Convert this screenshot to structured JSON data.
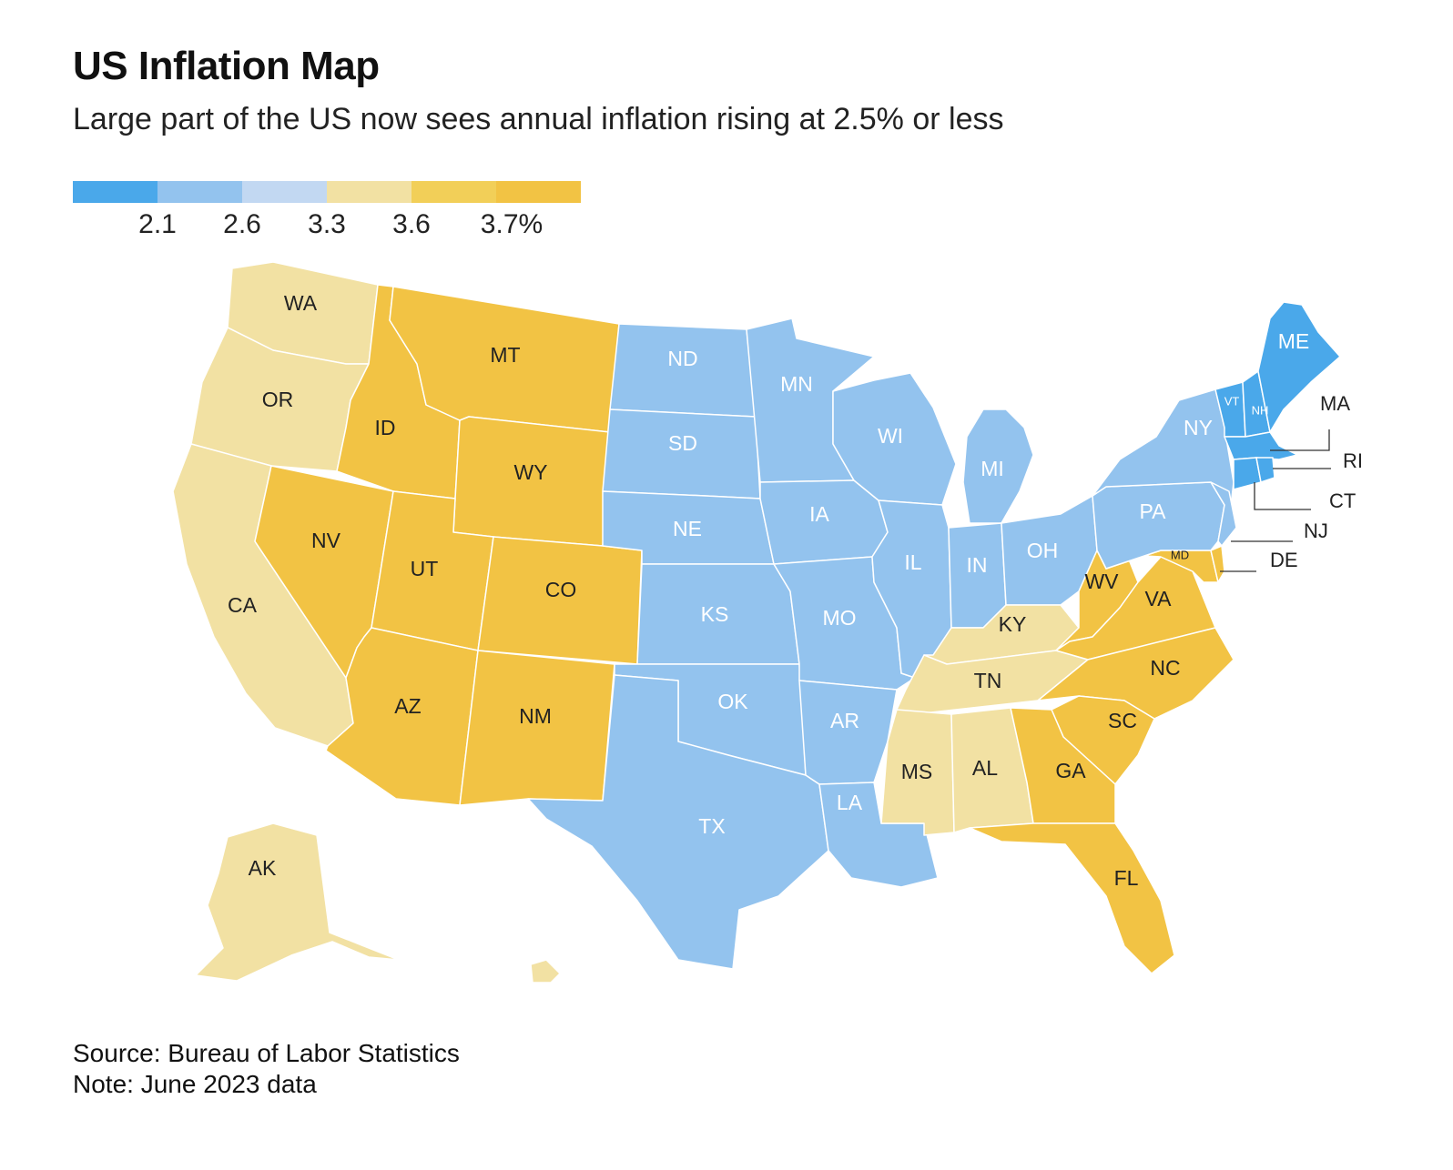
{
  "title": "US Inflation Map",
  "subtitle": "Large part of the US now sees annual inflation rising at 2.5% or less",
  "legend": {
    "colors": [
      "#4aa8ea",
      "#93c3ee",
      "#c2d8f2",
      "#f2e1a3",
      "#f2cf58",
      "#f2c344"
    ],
    "ticks": [
      "2.1",
      "2.6",
      "3.3",
      "3.6",
      "3.7%"
    ]
  },
  "colors": {
    "dark_blue": "#4aa8ea",
    "light_blue": "#93c3ee",
    "light_yellow": "#f2e1a3",
    "yellow": "#f2c344",
    "border": "#ffffff"
  },
  "regions": {
    "pacific": {
      "states": [
        "WA",
        "OR",
        "CA",
        "AK",
        "HI"
      ],
      "inflation_bucket": "3.3-3.6"
    },
    "mountain": {
      "states": [
        "MT",
        "ID",
        "WY",
        "NV",
        "UT",
        "CO",
        "AZ",
        "NM"
      ],
      "inflation_bucket": "3.6-3.7%"
    },
    "west_north_central": {
      "states": [
        "ND",
        "SD",
        "NE",
        "KS",
        "MN",
        "IA",
        "MO"
      ],
      "inflation_bucket": "2.1-2.6"
    },
    "west_south_central": {
      "states": [
        "TX",
        "OK",
        "AR",
        "LA"
      ],
      "inflation_bucket": "2.1-2.6"
    },
    "east_north_central": {
      "states": [
        "WI",
        "MI",
        "IL",
        "IN",
        "OH"
      ],
      "inflation_bucket": "2.1-2.6"
    },
    "east_south_central": {
      "states": [
        "KY",
        "TN",
        "MS",
        "AL"
      ],
      "inflation_bucket": "3.3-3.6"
    },
    "south_atlantic": {
      "states": [
        "WV",
        "VA",
        "MD",
        "DE",
        "NC",
        "SC",
        "GA",
        "FL"
      ],
      "inflation_bucket": "3.6-3.7%"
    },
    "middle_atlantic": {
      "states": [
        "NY",
        "PA",
        "NJ"
      ],
      "inflation_bucket": "2.1-2.6"
    },
    "new_england": {
      "states": [
        "ME",
        "NH",
        "VT",
        "MA",
        "RI",
        "CT"
      ],
      "inflation_bucket": "<2.1"
    }
  },
  "labels": {
    "WA": "WA",
    "OR": "OR",
    "CA": "CA",
    "AK": "AK",
    "MT": "MT",
    "ID": "ID",
    "WY": "WY",
    "NV": "NV",
    "UT": "UT",
    "CO": "CO",
    "AZ": "AZ",
    "NM": "NM",
    "ND": "ND",
    "SD": "SD",
    "NE": "NE",
    "KS": "KS",
    "MN": "MN",
    "IA": "IA",
    "MO": "MO",
    "TX": "TX",
    "OK": "OK",
    "AR": "AR",
    "LA": "LA",
    "WI": "WI",
    "MI": "MI",
    "IL": "IL",
    "IN": "IN",
    "OH": "OH",
    "KY": "KY",
    "TN": "TN",
    "MS": "MS",
    "AL": "AL",
    "WV": "WV",
    "VA": "VA",
    "MD": "MD",
    "NC": "NC",
    "SC": "SC",
    "GA": "GA",
    "FL": "FL",
    "NY": "NY",
    "PA": "PA",
    "ME": "ME",
    "VT": "VT",
    "NH": "NH",
    "MA": "MA",
    "RI": "RI",
    "CT": "CT",
    "NJ": "NJ",
    "DE": "DE"
  },
  "source": "Source: Bureau of Labor Statistics",
  "note": "Note: June 2023 data"
}
